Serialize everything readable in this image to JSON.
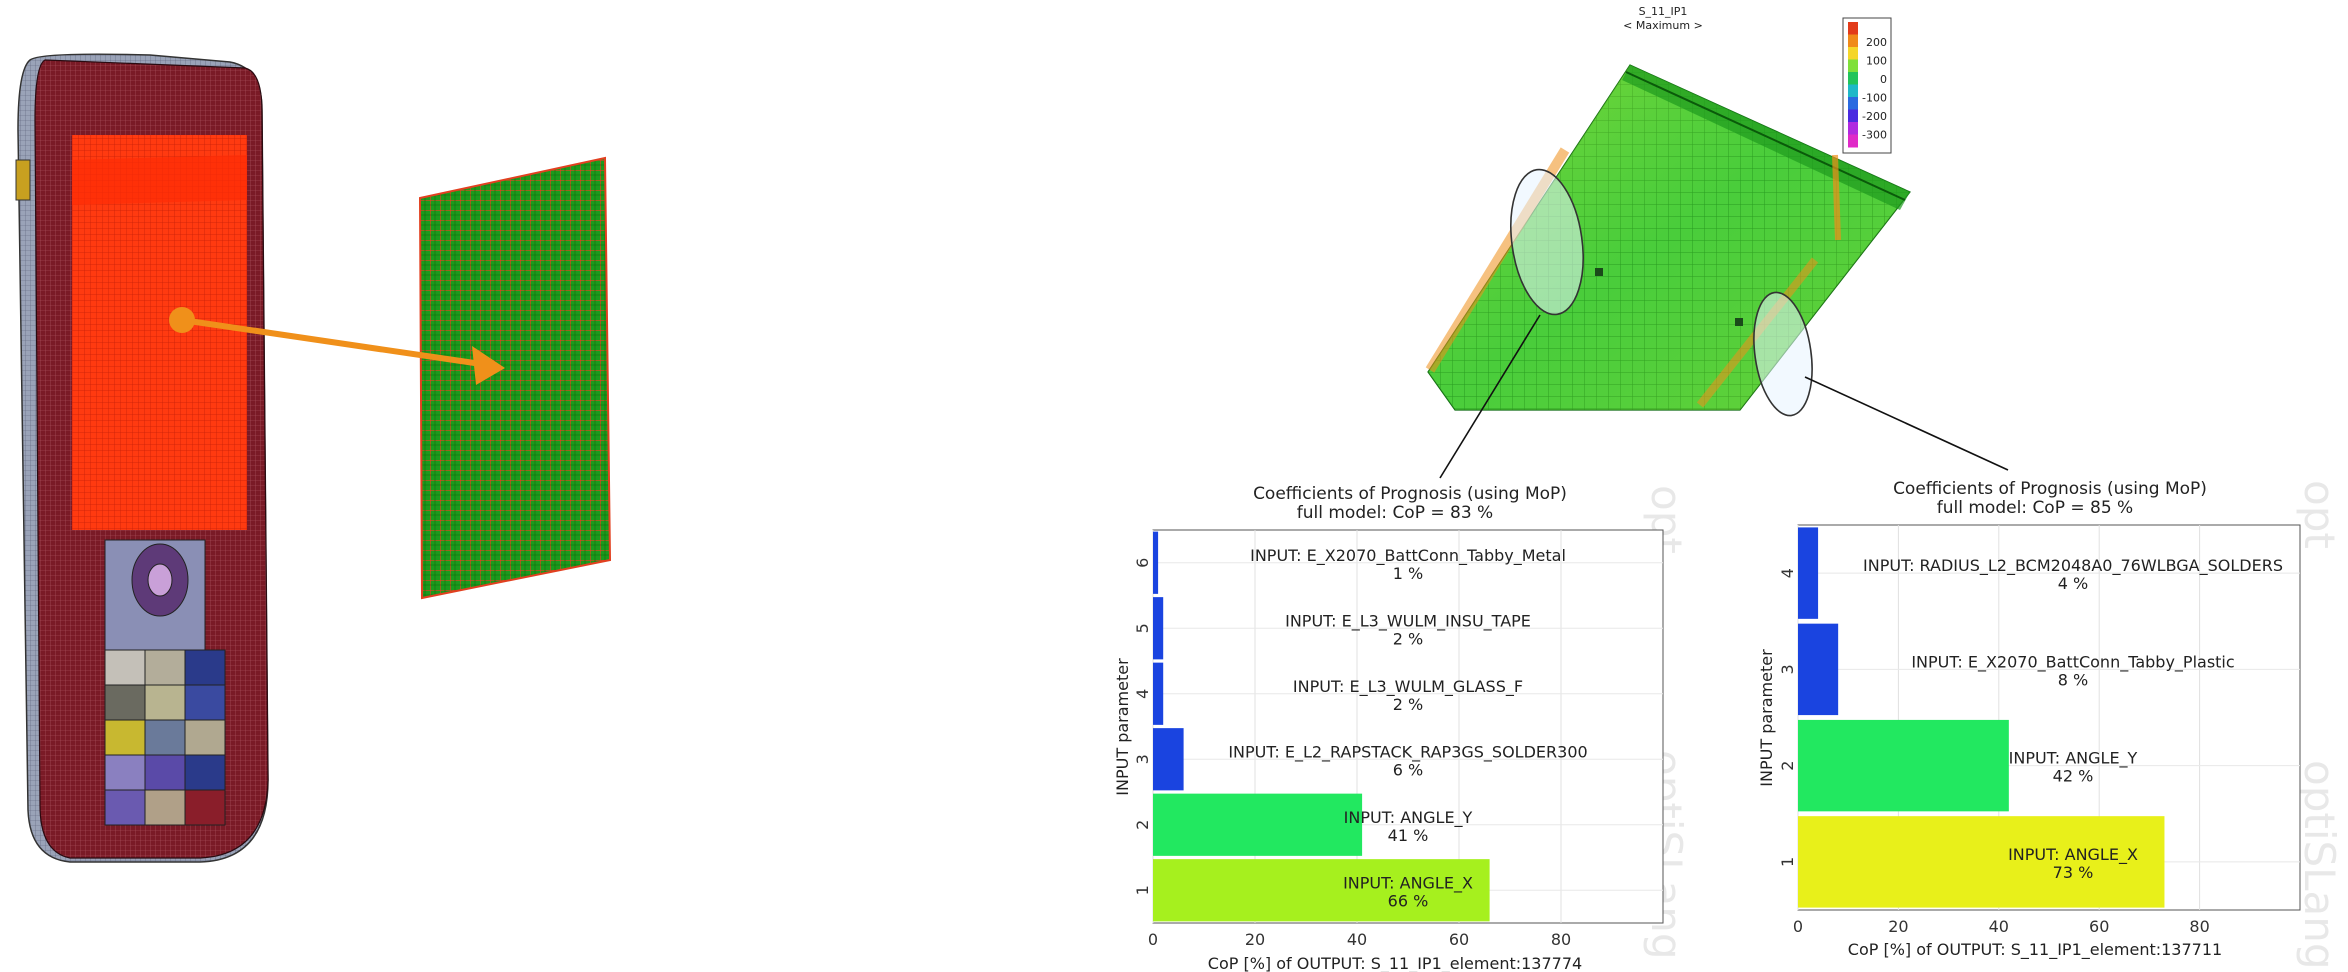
{
  "fem_plot": {
    "title_line1": "S_11_IP1",
    "title_line2": "< Maximum >",
    "colorbar_ticks": [
      "200",
      "100",
      "0",
      "-100",
      "-200",
      "-300"
    ],
    "colorbar_colors": [
      "#e23b1a",
      "#f08a1a",
      "#f5d62a",
      "#7fe03a",
      "#22c45a",
      "#1fb8c8",
      "#2a6ae0",
      "#4a2ae0",
      "#b02ae0",
      "#e02ac8"
    ]
  },
  "watermark": "optiSLang",
  "watermark_short": "opt",
  "chart_data": [
    {
      "type": "bar",
      "orientation": "horizontal",
      "title": "Coefficients of Prognosis (using MoP)",
      "subtitle": "full model: CoP =    83 %",
      "xlabel": "CoP [%] of OUTPUT: S_11_IP1_element:137774",
      "ylabel": "INPUT parameter",
      "xlim": [
        0,
        100
      ],
      "xticks": [
        0,
        20,
        40,
        60,
        80
      ],
      "categories": [
        "1",
        "2",
        "3",
        "4",
        "5",
        "6"
      ],
      "names": [
        "INPUT: ANGLE_X",
        "INPUT: ANGLE_Y",
        "INPUT: E_L2_RAPSTACK_RAP3GS_SOLDER300",
        "INPUT: E_L3_WULM_GLASS_F",
        "INPUT: E_L3_WULM_INSU_TAPE",
        "INPUT: E_X2070_BattConn_Tabby_Metal"
      ],
      "labels": [
        "66 %",
        "41 %",
        "6 %",
        "2 %",
        "2 %",
        "1 %"
      ],
      "values": [
        66,
        41,
        6,
        2,
        2,
        1
      ],
      "colors": [
        "#a6f01e",
        "#22e860",
        "#1a44e0",
        "#1a44e0",
        "#1a44e0",
        "#1a44e0"
      ],
      "grid": true
    },
    {
      "type": "bar",
      "orientation": "horizontal",
      "title": "Coefficients of Prognosis (using MoP)",
      "subtitle": "full model: CoP =    85 %",
      "xlabel": "CoP [%] of OUTPUT: S_11_IP1_element:137711",
      "ylabel": "INPUT parameter",
      "xlim": [
        0,
        100
      ],
      "xticks": [
        0,
        20,
        40,
        60,
        80
      ],
      "categories": [
        "1",
        "2",
        "3",
        "4"
      ],
      "names": [
        "INPUT: ANGLE_X",
        "INPUT: ANGLE_Y",
        "INPUT: E_X2070_BattConn_Tabby_Plastic",
        "INPUT: RADIUS_L2_BCM2048A0_76WLBGA_SOLDERS"
      ],
      "labels": [
        "73 %",
        "42 %",
        "8 %",
        "4 %"
      ],
      "values": [
        73,
        42,
        8,
        4
      ],
      "colors": [
        "#e8f01a",
        "#22e860",
        "#1a44e0",
        "#1a44e0"
      ],
      "grid": true
    }
  ]
}
